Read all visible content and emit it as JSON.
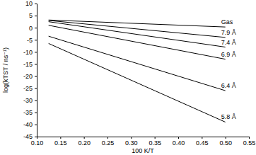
{
  "chart_data": {
    "type": "line",
    "x_label": "100 K/T",
    "y_label": "log(kTST / ns⁻¹)",
    "series": [
      {
        "name": "Gas",
        "color": "#000000",
        "x": [
          0.125,
          0.5
        ],
        "values": [
          3.2,
          0.3
        ]
      },
      {
        "name": "7.9 Å",
        "color": "#000000",
        "x": [
          0.125,
          0.5
        ],
        "values": [
          3.0,
          -4
        ]
      },
      {
        "name": "7.4 Å",
        "color": "#000000",
        "x": [
          0.125,
          0.5
        ],
        "values": [
          2.5,
          -8
        ]
      },
      {
        "name": "6.9 Å",
        "color": "#000000",
        "x": [
          0.125,
          0.5
        ],
        "values": [
          1.0,
          -13
        ]
      },
      {
        "name": "6.4 Å",
        "color": "#000000",
        "x": [
          0.125,
          0.5
        ],
        "values": [
          -3.5,
          -26
        ]
      },
      {
        "name": "5.8 Å",
        "color": "#000000",
        "x": [
          0.125,
          0.5
        ],
        "values": [
          -6.5,
          -39
        ]
      }
    ],
    "xlim": [
      0.1,
      0.55
    ],
    "xticks": [
      {
        "value": 0.1,
        "label": "0.10"
      },
      0.15,
      {
        "value": 0.2,
        "label": "0.20"
      },
      0.25,
      {
        "value": 0.3,
        "label": "0.30"
      },
      0.35,
      {
        "value": 0.4,
        "label": "0.40"
      },
      0.45,
      {
        "value": 0.5,
        "label": "0.50"
      },
      0.55
    ],
    "ylim": [
      -45,
      10
    ],
    "yticks": [
      -45,
      -40,
      -35,
      -30,
      -25,
      -20,
      -15,
      -10,
      -5,
      0,
      5,
      10
    ],
    "grid": false,
    "legend": "inline"
  }
}
